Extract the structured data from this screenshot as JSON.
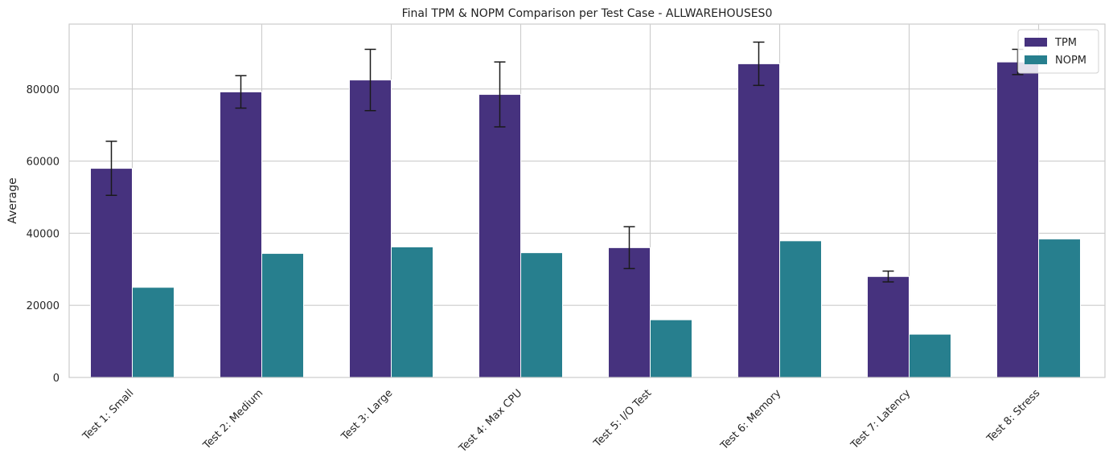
{
  "chart_data": {
    "type": "bar",
    "title": "Final TPM & NOPM Comparison per Test Case - ALLWAREHOUSES0",
    "xlabel": "",
    "ylabel": "Average",
    "categories": [
      "Test 1: Small",
      "Test 2: Medium",
      "Test 3: Large",
      "Test 4: Max CPU",
      "Test 5: I/O Test",
      "Test 6: Memory",
      "Test 7: Latency",
      "Test 8: Stress"
    ],
    "series": [
      {
        "name": "TPM",
        "color": "#46327e",
        "values": [
          58000,
          79200,
          82500,
          78500,
          36000,
          87000,
          28000,
          87500
        ],
        "error": [
          7500,
          4500,
          8500,
          9000,
          5800,
          6000,
          1500,
          3500
        ]
      },
      {
        "name": "NOPM",
        "color": "#277f8e",
        "values": [
          25000,
          34400,
          36200,
          34600,
          16000,
          37900,
          12000,
          38400
        ]
      }
    ],
    "ylim": [
      0,
      98000
    ],
    "yticks": [
      0,
      20000,
      40000,
      60000,
      80000
    ],
    "grid": true,
    "legend_position": "top-right"
  }
}
